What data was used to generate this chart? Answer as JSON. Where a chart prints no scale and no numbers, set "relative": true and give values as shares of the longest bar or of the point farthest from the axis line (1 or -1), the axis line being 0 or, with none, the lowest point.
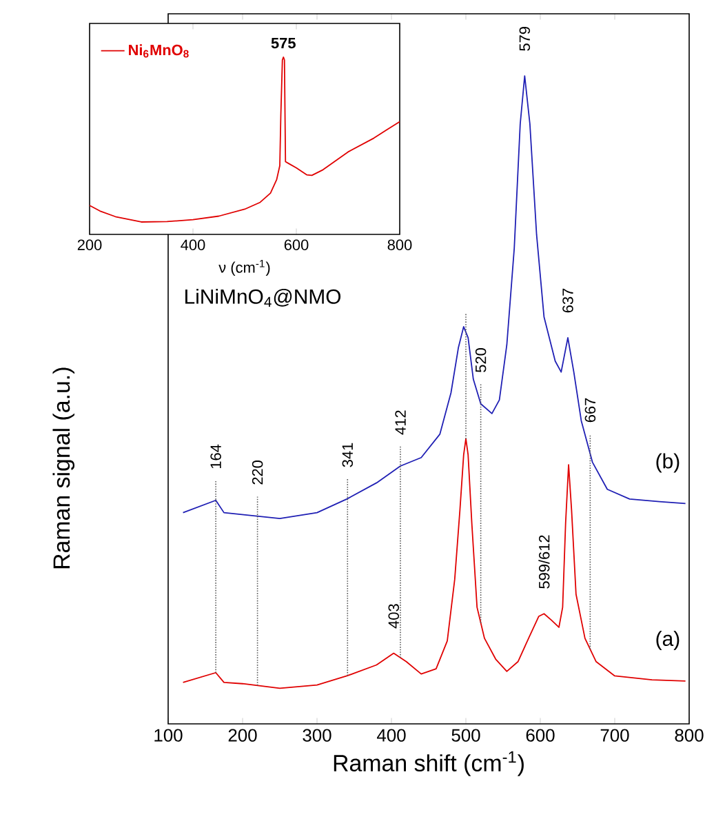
{
  "chart_data": [
    {
      "type": "line",
      "relative": true,
      "xlabel": "Raman shift (cm$^{-1}$)",
      "ylabel": "Raman signal (a.u.)",
      "xlim": [
        100,
        800
      ],
      "xticks": [
        100,
        200,
        300,
        400,
        500,
        600,
        700,
        800
      ],
      "legend": false,
      "series": [
        {
          "name": "(b)",
          "color": "#1f1fb4",
          "x": [
            120,
            164,
            175,
            200,
            250,
            300,
            340,
            380,
            412,
            440,
            465,
            480,
            490,
            497,
            503,
            510,
            520,
            535,
            545,
            555,
            565,
            573,
            579,
            586,
            595,
            605,
            620,
            628,
            637,
            645,
            655,
            670,
            690,
            720,
            760,
            795
          ],
          "values": [
            0.326,
            0.345,
            0.326,
            0.323,
            0.317,
            0.326,
            0.347,
            0.372,
            0.398,
            0.411,
            0.447,
            0.511,
            0.581,
            0.613,
            0.596,
            0.532,
            0.494,
            0.479,
            0.5,
            0.585,
            0.734,
            0.926,
            1,
            0.926,
            0.755,
            0.628,
            0.56,
            0.543,
            0.596,
            0.543,
            0.468,
            0.404,
            0.362,
            0.347,
            0.343,
            0.34
          ]
        },
        {
          "name": "(a)",
          "color": "#e00000",
          "x": [
            120,
            164,
            175,
            200,
            250,
            300,
            340,
            380,
            403,
            420,
            440,
            460,
            475,
            485,
            492,
            497,
            500,
            503,
            508,
            515,
            525,
            540,
            555,
            570,
            585,
            598,
            605,
            615,
            625,
            630,
            634,
            638,
            642,
            648,
            660,
            675,
            700,
            750,
            795
          ],
          "values": [
            0.064,
            0.079,
            0.064,
            0.062,
            0.055,
            0.06,
            0.074,
            0.091,
            0.109,
            0.096,
            0.077,
            0.085,
            0.128,
            0.223,
            0.33,
            0.415,
            0.44,
            0.415,
            0.309,
            0.18,
            0.132,
            0.1,
            0.081,
            0.096,
            0.134,
            0.166,
            0.17,
            0.16,
            0.149,
            0.18,
            0.31,
            0.4,
            0.33,
            0.2,
            0.132,
            0.096,
            0.074,
            0.068,
            0.066
          ]
        }
      ],
      "ref_lines": [
        {
          "axis": "x",
          "value": 164,
          "label": "164"
        },
        {
          "axis": "x",
          "value": 220,
          "label": "220"
        },
        {
          "axis": "x",
          "value": 341,
          "label": "341"
        },
        {
          "axis": "x",
          "value": 412,
          "label": "412"
        },
        {
          "axis": "x",
          "value": 500,
          "label": null
        },
        {
          "axis": "x",
          "value": 520,
          "label": "520"
        },
        {
          "axis": "x",
          "value": 667,
          "label": "667"
        }
      ],
      "annotations": [
        "LiNiMnO$_{4}$@NMO",
        {
          "text": "579",
          "x": 579,
          "y": 1
        },
        {
          "text": "637",
          "x": 637,
          "y": 0.596
        },
        {
          "text": "403",
          "x": 403,
          "y": 0.109
        },
        {
          "text": "599/612",
          "x": 605,
          "y": 0.17
        }
      ]
    },
    {
      "type": "line",
      "relative": true,
      "xlabel": "ν (cm$^{-1}$)",
      "xlim": [
        200,
        800
      ],
      "xticks": [
        200,
        400,
        600,
        800
      ],
      "legend": "top left",
      "series": [
        {
          "name": "Ni$_{6}$MnO$_{8}$",
          "color": "#e00000",
          "x": [
            200,
            220,
            250,
            300,
            350,
            400,
            450,
            500,
            530,
            550,
            562,
            568,
            570,
            573,
            575,
            577,
            579,
            585,
            600,
            620,
            630,
            650,
            700,
            750,
            775,
            800
          ],
          "values": [
            0.163,
            0.132,
            0.1,
            0.07,
            0.072,
            0.083,
            0.103,
            0.142,
            0.181,
            0.233,
            0.31,
            0.388,
            0.674,
            0.984,
            1,
            0.984,
            0.41,
            0.4,
            0.375,
            0.336,
            0.333,
            0.362,
            0.465,
            0.543,
            0.59,
            0.636
          ]
        }
      ],
      "annotations": [
        {
          "text": "575",
          "x": 575,
          "y": 1
        }
      ]
    }
  ]
}
